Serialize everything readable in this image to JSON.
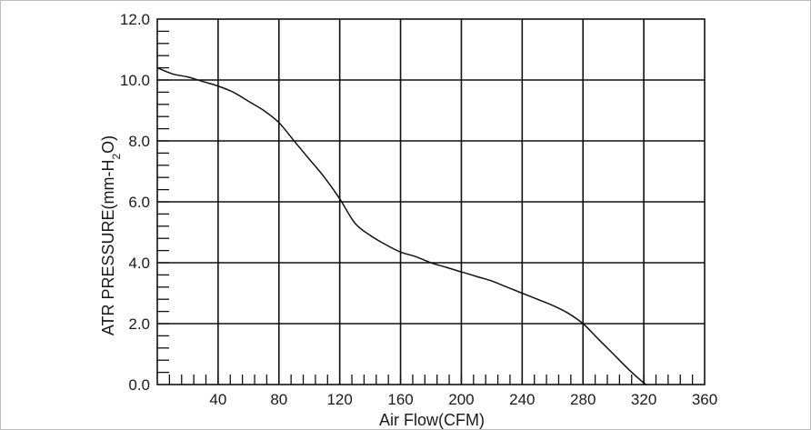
{
  "chart_data": {
    "type": "line",
    "title": "",
    "xlabel": "Air Flow(CFM)",
    "ylabel": {
      "prefix": "ATR PRESSURE(mm-H",
      "subscript": "2",
      "suffix": "O)"
    },
    "xlim": [
      0,
      360
    ],
    "ylim": [
      0,
      12
    ],
    "x_ticks": [
      40,
      80,
      120,
      160,
      200,
      240,
      280,
      320,
      360
    ],
    "y_ticks": [
      "0.0",
      "2.0",
      "4.0",
      "6.0",
      "8.0",
      "10.0",
      "12.0"
    ],
    "grid": true,
    "series": [
      {
        "x": [
          0,
          10,
          20,
          30,
          40,
          50,
          60,
          70,
          80,
          90,
          100,
          110,
          120,
          130,
          140,
          150,
          160,
          170,
          180,
          190,
          200,
          210,
          220,
          230,
          240,
          250,
          260,
          270,
          280,
          290,
          300,
          310,
          320,
          322
        ],
        "y": [
          10.4,
          10.2,
          10.1,
          9.95,
          9.8,
          9.6,
          9.3,
          9.0,
          8.6,
          8.0,
          7.4,
          6.8,
          6.1,
          5.3,
          4.9,
          4.6,
          4.35,
          4.2,
          4.0,
          3.85,
          3.7,
          3.55,
          3.4,
          3.2,
          3.0,
          2.8,
          2.6,
          2.35,
          2.0,
          1.5,
          1.0,
          0.5,
          0.05,
          0.0
        ]
      }
    ]
  }
}
